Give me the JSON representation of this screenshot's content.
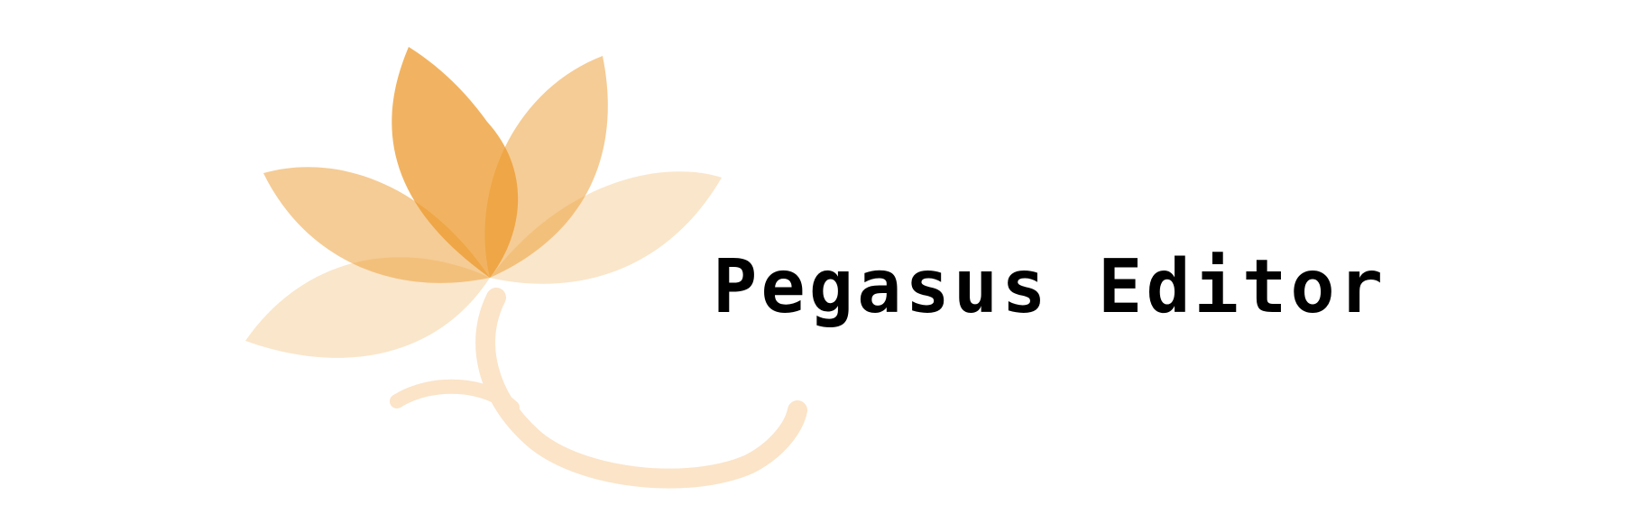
{
  "brand": {
    "name": "Pegasus Editor",
    "logo_icon": "lotus-flower-icon",
    "colors": {
      "petal_dark": "#ec9a2c",
      "petal_mid": "#f2b466",
      "petal_light": "#f9dcb6",
      "stem": "#fbe4c8",
      "text": "#000000",
      "background": "#ffffff"
    }
  }
}
